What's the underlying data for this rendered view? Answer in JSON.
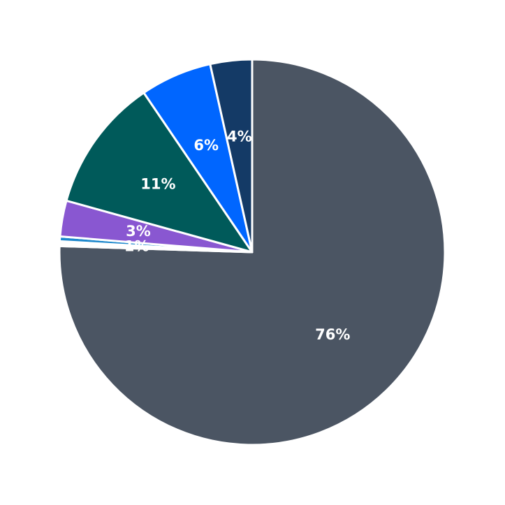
{
  "chart_data": {
    "type": "pie",
    "start_angle": "12 o'clock",
    "direction": "clockwise",
    "slices": [
      {
        "label": "76%",
        "value": 75.5,
        "color": "#4b5563"
      },
      {
        "label": "1%",
        "value": 0.4,
        "color": "#ffffff"
      },
      {
        "label": "",
        "value": 0.4,
        "color": "#1c87cc"
      },
      {
        "label": "3%",
        "value": 3.0,
        "color": "#8957d1"
      },
      {
        "label": "11%",
        "value": 11.2,
        "color": "#005a5a"
      },
      {
        "label": "6%",
        "value": 6.0,
        "color": "#0066ff"
      },
      {
        "label": "4%",
        "value": 3.5,
        "color": "#143a66"
      }
    ]
  }
}
